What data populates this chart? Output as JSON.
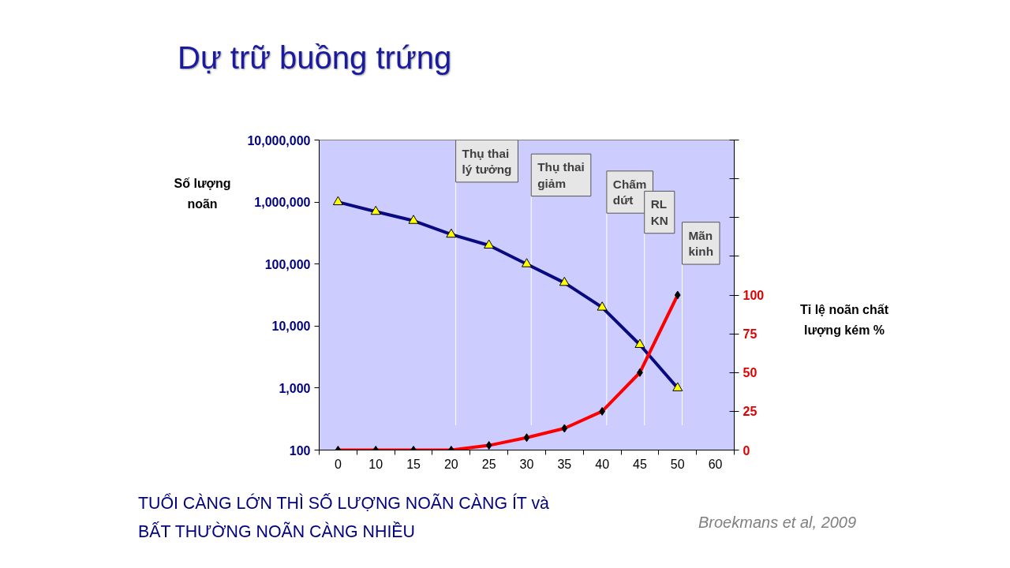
{
  "chart_data": {
    "type": "line",
    "title": "Dự trữ buồng trứng",
    "ylabel": "Số lượng noãn",
    "y2label": "Tỉ lệ noãn chất lượng kém %",
    "categories": [
      "0",
      "10",
      "15",
      "20",
      "25",
      "30",
      "35",
      "40",
      "45",
      "50",
      "60"
    ],
    "series": [
      {
        "color": "#0a0a80",
        "marker": "triangle",
        "values": [
          1000000,
          700000,
          500000,
          300000,
          200000,
          100000,
          50000,
          20000,
          5000,
          1000,
          null
        ]
      },
      {
        "color": "#ff0000",
        "marker": "diamond",
        "axis": "y2",
        "values": [
          0,
          0,
          0,
          0,
          3,
          8,
          14,
          25,
          50,
          100,
          null
        ]
      }
    ],
    "log": "y",
    "ylim": [
      100,
      10000000
    ],
    "yticks": [
      {
        "value": 100,
        "label": "100"
      },
      {
        "value": 1000,
        "label": "1,000"
      },
      {
        "value": 10000,
        "label": "10,000"
      },
      {
        "value": 100000,
        "label": "100,000"
      },
      {
        "value": 1000000,
        "label": "1,000,000"
      },
      {
        "value": 10000000,
        "label": "10,000,000"
      }
    ],
    "y2lim": [
      0,
      200
    ],
    "y2ticks": [
      0,
      25,
      50,
      75,
      100,
      {
        "value": 125,
        "label": null
      },
      {
        "value": 150,
        "label": null
      },
      {
        "value": 175,
        "label": null
      },
      {
        "value": 200,
        "label": null
      }
    ],
    "grid": false,
    "ref_lines": [
      {
        "axis": "x",
        "value": "20",
        "label": "Thụ thai lý tưởng",
        "color": "#ffffff"
      },
      {
        "axis": "x",
        "value": "30",
        "label": "Thụ thai giảm",
        "color": "#ffffff"
      },
      {
        "axis": "x",
        "value": "40",
        "label": "Chấm dứt",
        "color": "#ffffff"
      },
      {
        "axis": "x",
        "value": "45",
        "label": "RL KN",
        "color": "#ffffff"
      },
      {
        "axis": "x",
        "value": "50",
        "label": "Mãn kinh",
        "color": "#ffffff"
      }
    ],
    "annotations": [
      "TUỔI CÀNG LỚN THÌ SỐ LƯỢNG NOÃN CÀNG ÍT và BẤT THƯỜNG NOÃN CÀNG NHIỀU",
      "Broekmans et al, 2009"
    ]
  }
}
